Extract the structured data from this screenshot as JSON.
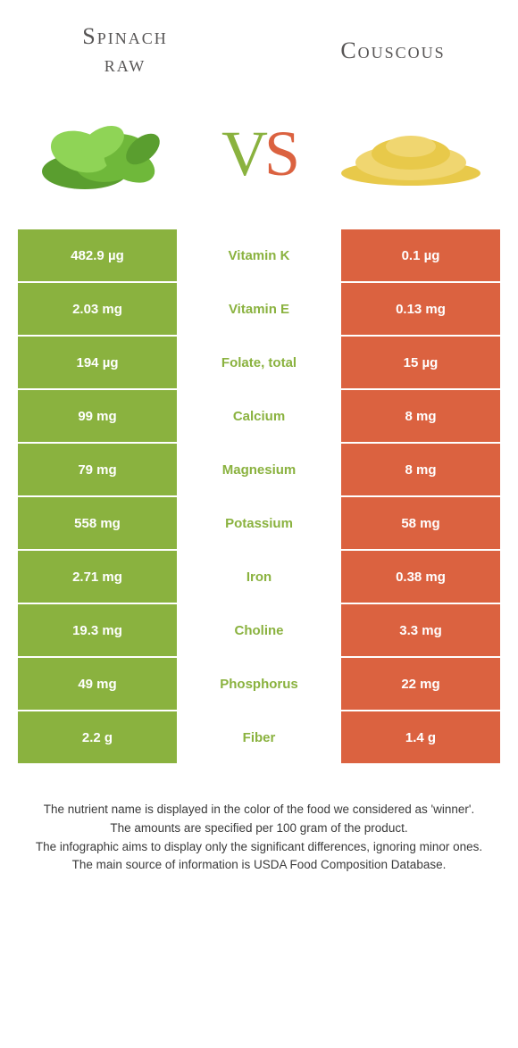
{
  "header": {
    "left_line1": "Spinach",
    "left_line2": "raw",
    "right": "Couscous"
  },
  "vs": {
    "v": "V",
    "s": "S"
  },
  "colors": {
    "left": "#8ab23f",
    "right": "#db6240",
    "mid_text_winner_left": "#8ab23f",
    "mid_text_winner_right": "#db6240",
    "cell_text": "#ffffff",
    "body_text": "#3a3a3a"
  },
  "table": {
    "rows": [
      {
        "left": "482.9 µg",
        "label": "Vitamin K",
        "right": "0.1 µg",
        "winner": "left"
      },
      {
        "left": "2.03 mg",
        "label": "Vitamin E",
        "right": "0.13 mg",
        "winner": "left"
      },
      {
        "left": "194 µg",
        "label": "Folate, total",
        "right": "15 µg",
        "winner": "left"
      },
      {
        "left": "99 mg",
        "label": "Calcium",
        "right": "8 mg",
        "winner": "left"
      },
      {
        "left": "79 mg",
        "label": "Magnesium",
        "right": "8 mg",
        "winner": "left"
      },
      {
        "left": "558 mg",
        "label": "Potassium",
        "right": "58 mg",
        "winner": "left"
      },
      {
        "left": "2.71 mg",
        "label": "Iron",
        "right": "0.38 mg",
        "winner": "left"
      },
      {
        "left": "19.3 mg",
        "label": "Choline",
        "right": "3.3 mg",
        "winner": "left"
      },
      {
        "left": "49 mg",
        "label": "Phosphorus",
        "right": "22 mg",
        "winner": "left"
      },
      {
        "left": "2.2 g",
        "label": "Fiber",
        "right": "1.4 g",
        "winner": "left"
      }
    ]
  },
  "footnotes": {
    "l1": "The nutrient name is displayed in the color of the food we considered as 'winner'.",
    "l2": "The amounts are specified per 100 gram of the product.",
    "l3": "The infographic aims to display only the significant differences, ignoring minor ones.",
    "l4": "The main source of information is USDA Food Composition Database."
  }
}
